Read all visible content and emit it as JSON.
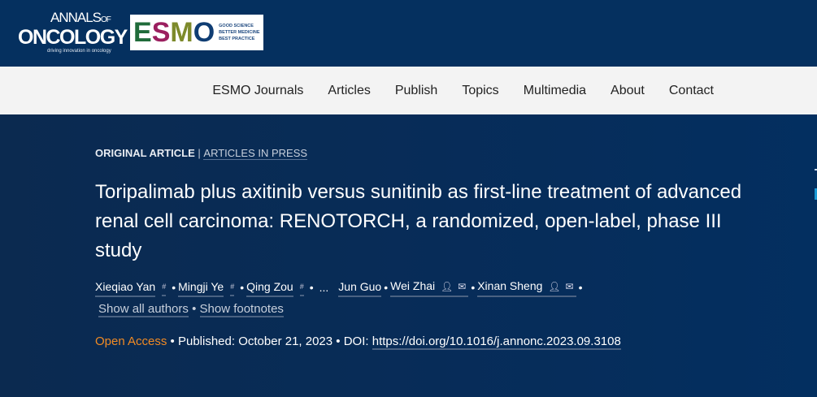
{
  "logo": {
    "annals_line1": "ANNALS",
    "annals_of": "OF",
    "annals_line2": "ONCOLOGY",
    "annals_tagline": "driving innovation in oncology",
    "esmo_letters": [
      "E",
      "S",
      "M",
      "O"
    ],
    "esmo_colors": [
      "#1f6b3a",
      "#9b1f5f",
      "#7d8a2b",
      "#0f3d73"
    ],
    "esmo_tagline": [
      "GOOD SCIENCE",
      "BETTER MEDICINE",
      "BEST PRACTICE"
    ]
  },
  "nav": [
    "ESMO Journals",
    "Articles",
    "Publish",
    "Topics",
    "Multimedia",
    "About",
    "Contact"
  ],
  "article": {
    "type": "ORIGINAL ARTICLE",
    "separator": "|",
    "section": "ARTICLES IN PRESS",
    "title": "Toripalimab plus axitinib versus sunitinib as first-line treatment of advanced renal cell carcinoma: RENOTORCH, a randomized, open-label, phase III study",
    "authors": [
      {
        "name": "Xieqiao Yan",
        "mark": "#"
      },
      {
        "name": "Mingji Ye",
        "mark": "#"
      },
      {
        "name": "Qing Zou",
        "mark": "#"
      }
    ],
    "ellipsis": "...",
    "authors_tail": [
      {
        "name": "Jun Guo"
      },
      {
        "name": "Wei Zhai",
        "icons": [
          "person-icon",
          "mail-icon"
        ]
      },
      {
        "name": "Xinan Sheng",
        "icons": [
          "person-icon",
          "mail-icon"
        ]
      }
    ],
    "show_all": "Show all authors",
    "show_footnotes": "Show footnotes",
    "open_access": "Open Access",
    "published": "Published: October 21, 2023",
    "doi_label": "DOI:",
    "doi": "https://doi.org/10.1016/j.annonc.2023.09.3108",
    "accent": "#f08a24"
  }
}
